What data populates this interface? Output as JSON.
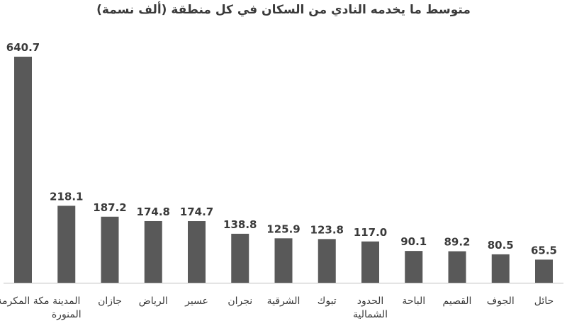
{
  "colors": {
    "bar": "#595959",
    "axis": "#bfbfbf",
    "text": "#3a3a3a"
  },
  "chart_data": {
    "type": "bar",
    "title": "متوسط ما يخدمه النادي من السكان في كل منطقة (ألف نسمة)",
    "categories": [
      "مكة المكرمة",
      "المدينة المنورة",
      "جازان",
      "الرياض",
      "عسير",
      "نجران",
      "الشرقية",
      "تبوك",
      "الحدود الشمالية",
      "الباحة",
      "القصيم",
      "الجوف",
      "حائل"
    ],
    "values": [
      640.7,
      218.1,
      187.2,
      174.8,
      174.7,
      138.8,
      125.9,
      123.8,
      117.0,
      90.1,
      89.2,
      80.5,
      65.5
    ],
    "value_labels": [
      "640.7",
      "218.1",
      "187.2",
      "174.8",
      "174.7",
      "138.8",
      "125.9",
      "123.8",
      "117.0",
      "90.1",
      "89.2",
      "80.5",
      "65.5"
    ],
    "ylim": [
      0,
      640.7
    ],
    "grid": false,
    "legend": "none",
    "xlabel": "",
    "ylabel": ""
  }
}
